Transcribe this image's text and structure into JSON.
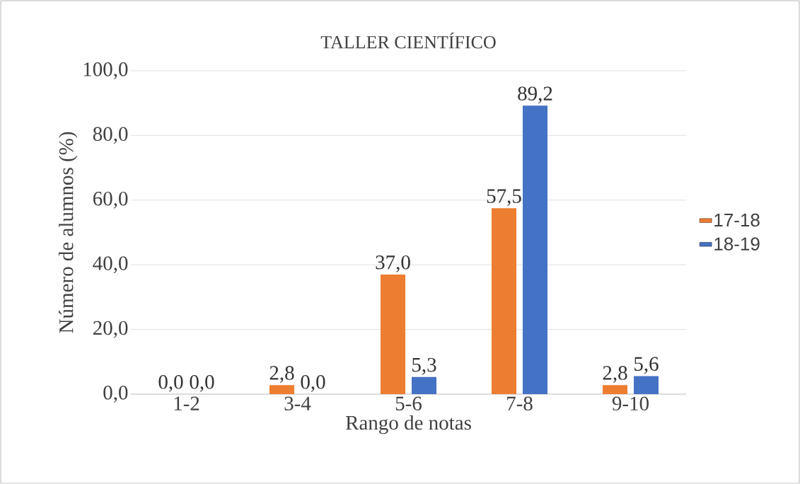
{
  "chart_data": {
    "type": "bar",
    "title": "TALLER CIENTÍFICO",
    "xlabel": "Rango de notas",
    "ylabel": "Número de alumnos (%)",
    "categories": [
      "1-2",
      "3-4",
      "5-6",
      "7-8",
      "9-10"
    ],
    "series": [
      {
        "name": "17-18",
        "color": "#ed7d31",
        "values": [
          0.0,
          2.8,
          37.0,
          57.5,
          2.8
        ],
        "value_labels": [
          "0,0",
          "2,8",
          "37,0",
          "57,5",
          "2,8"
        ]
      },
      {
        "name": "18-19",
        "color": "#4472c4",
        "values": [
          0.0,
          0.0,
          5.3,
          89.2,
          5.6
        ],
        "value_labels": [
          "0,0",
          "0,0",
          "5,3",
          "89,2",
          "5,6"
        ]
      }
    ],
    "ylim": [
      0,
      100
    ],
    "yticks": [
      {
        "value": 0,
        "label": "0,0"
      },
      {
        "value": 20,
        "label": "20,0"
      },
      {
        "value": 40,
        "label": "40,0"
      },
      {
        "value": 60,
        "label": "60,0"
      },
      {
        "value": 80,
        "label": "80,0"
      },
      {
        "value": 100,
        "label": "100,0"
      }
    ],
    "grid": "y",
    "legend": "right"
  }
}
